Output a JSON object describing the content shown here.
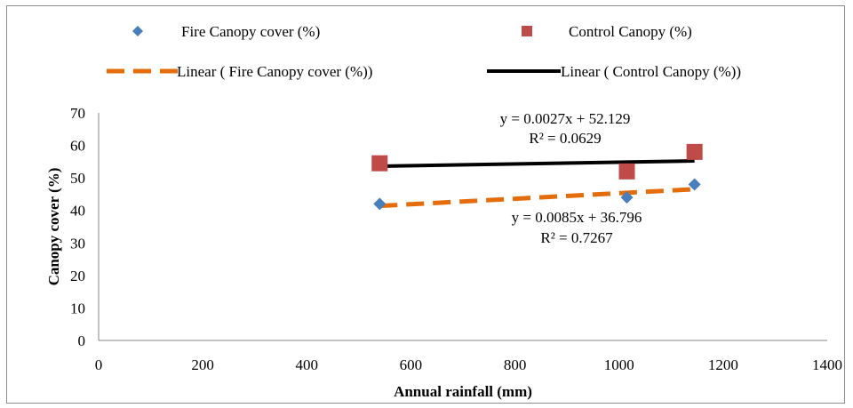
{
  "chart_data": {
    "type": "scatter",
    "xlabel": "Annual rainfall (mm)",
    "ylabel": "Canopy cover (%)",
    "xlim": [
      0,
      1400
    ],
    "ylim": [
      0,
      70
    ],
    "x_ticks": [
      "0",
      "200",
      "400",
      "600",
      "800",
      "1000",
      "1200",
      "1400"
    ],
    "y_ticks": [
      "0",
      "10",
      "20",
      "30",
      "40",
      "50",
      "60",
      "70"
    ],
    "grid": false,
    "legend_position": "top",
    "series": [
      {
        "name": "Fire Canopy cover (%)",
        "marker": "diamond",
        "color": "#4a7ebb",
        "points": [
          [
            540,
            42
          ],
          [
            1015,
            44
          ],
          [
            1145,
            48
          ]
        ]
      },
      {
        "name": "Control Canopy  (%)",
        "marker": "square",
        "color": "#be4b48",
        "points": [
          [
            540,
            54.5
          ],
          [
            1015,
            52
          ],
          [
            1145,
            58
          ]
        ]
      }
    ],
    "trendlines": [
      {
        "name": "Linear ( Fire Canopy cover (%))",
        "style": "dashed",
        "color": "#e46c0a",
        "slope": 0.0085,
        "intercept": 36.796,
        "x_range": [
          540,
          1145
        ],
        "equation": "y = 0.0085x + 36.796",
        "r2": "R² = 0.7267"
      },
      {
        "name": "Linear ( Control Canopy  (%))",
        "style": "solid",
        "color": "#000000",
        "slope": 0.0027,
        "intercept": 52.129,
        "x_range": [
          540,
          1145
        ],
        "equation": "y = 0.0027x + 52.129",
        "r2": "R² = 0.0629"
      }
    ]
  }
}
